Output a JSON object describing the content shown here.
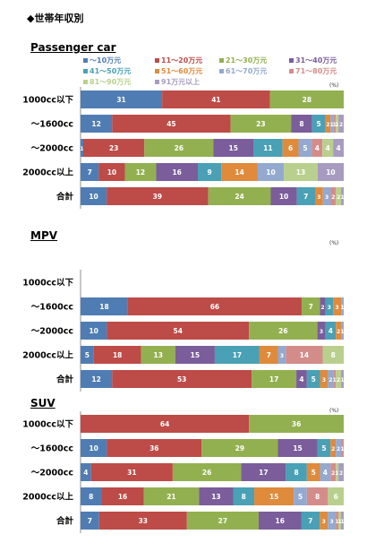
{
  "page_title": "◆世帯年収別",
  "unit": "(%)",
  "legend": [
    {
      "label": "～10万元",
      "color": "#4f7db3"
    },
    {
      "label": "11～20万元",
      "color": "#bd4b47"
    },
    {
      "label": "21～30万元",
      "color": "#93b050"
    },
    {
      "label": "31～40万元",
      "color": "#7a5d9a"
    },
    {
      "label": "41～50万元",
      "color": "#4aa0b5"
    },
    {
      "label": "51～60万元",
      "color": "#e08a3b"
    },
    {
      "label": "61～70万元",
      "color": "#93a9d0"
    },
    {
      "label": "71～80万元",
      "color": "#d48c8a"
    },
    {
      "label": "81～90万元",
      "color": "#b9cf8d"
    },
    {
      "label": "91万元以上",
      "color": "#a79bc0"
    }
  ],
  "chart_data": [
    {
      "type": "bar",
      "stacked": "horizontal-100%",
      "title": "Passenger car",
      "categories": [
        "1000cc以下",
        "～1600cc",
        "～2000cc",
        "2000cc以上",
        "合計"
      ],
      "rows": [
        [
          31,
          41,
          28,
          0,
          0,
          0,
          0,
          0,
          0,
          0
        ],
        [
          12,
          45,
          23,
          8,
          5,
          2,
          1,
          1,
          1,
          2
        ],
        [
          1,
          23,
          26,
          15,
          11,
          6,
          5,
          4,
          4,
          4
        ],
        [
          7,
          10,
          12,
          16,
          9,
          14,
          10,
          0,
          13,
          10
        ],
        [
          10,
          39,
          24,
          10,
          7,
          3,
          3,
          2,
          2,
          1
        ]
      ]
    },
    {
      "type": "bar",
      "stacked": "horizontal-100%",
      "title": "MPV",
      "categories": [
        "1000cc以下",
        "～1600cc",
        "～2000cc",
        "2000cc以上",
        "合計"
      ],
      "rows": [
        [],
        [
          18,
          66,
          7,
          2,
          3,
          3,
          1,
          0,
          0,
          0
        ],
        [
          10,
          54,
          26,
          3,
          4,
          2,
          1,
          0,
          0,
          0
        ],
        [
          5,
          18,
          13,
          15,
          17,
          7,
          3,
          14,
          8,
          0
        ],
        [
          12,
          53,
          17,
          4,
          5,
          3,
          2,
          1,
          2,
          1
        ]
      ]
    },
    {
      "type": "bar",
      "stacked": "horizontal-100%",
      "title": "SUV",
      "categories": [
        "1000cc以下",
        "～1600cc",
        "～2000cc",
        "2000cc以上",
        "合計"
      ],
      "rows": [
        [
          0,
          64,
          36,
          0,
          0,
          0,
          0,
          0,
          0,
          0
        ],
        [
          10,
          36,
          29,
          15,
          5,
          2,
          2,
          1,
          0,
          0
        ],
        [
          4,
          31,
          26,
          17,
          8,
          5,
          4,
          2,
          1,
          2
        ],
        [
          8,
          16,
          21,
          13,
          8,
          15,
          5,
          8,
          6,
          0
        ],
        [
          7,
          33,
          27,
          16,
          7,
          3,
          3,
          1,
          1,
          1
        ]
      ]
    }
  ]
}
